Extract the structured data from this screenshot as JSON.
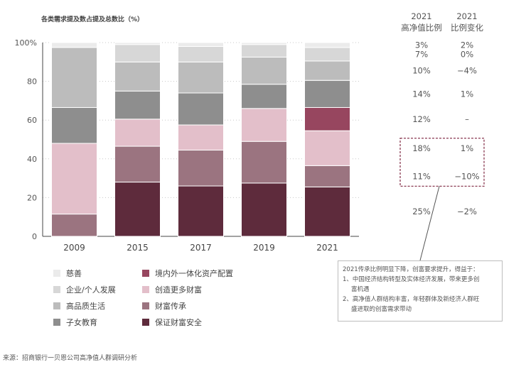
{
  "chart_data": {
    "type": "bar",
    "stacked": true,
    "title": "各类需求提及数占提及总数比（%）",
    "xlabel": "",
    "ylabel": "",
    "ylim": [
      0,
      100
    ],
    "yticks": [
      "0",
      "20",
      "40",
      "60",
      "80",
      "100%"
    ],
    "categories": [
      "2009",
      "2015",
      "2017",
      "2019",
      "2021"
    ],
    "series": [
      {
        "name": "保证财富安全",
        "color": "#5e2b3c",
        "values": [
          0,
          28,
          26,
          27.5,
          25.5
        ]
      },
      {
        "name": "财富传承",
        "color": "#9b7480",
        "values": [
          11.5,
          18.5,
          18.5,
          21.5,
          11
        ]
      },
      {
        "name": "创造更多财富",
        "color": "#e3bfca",
        "values": [
          36.5,
          14,
          13,
          17,
          18
        ]
      },
      {
        "name": "境内外一体化资产配置",
        "color": "#97465f",
        "values": [
          0,
          0,
          0,
          0,
          12
        ]
      },
      {
        "name": "子女教育",
        "color": "#8e8e8e",
        "values": [
          18.5,
          14.5,
          16.5,
          12.5,
          14
        ]
      },
      {
        "name": "高品质生活",
        "color": "#bcbcbc",
        "values": [
          31,
          15,
          16,
          14,
          10
        ]
      },
      {
        "name": "企业/个人发展",
        "color": "#d7d7d7",
        "values": [
          0,
          9,
          8,
          6.5,
          7
        ]
      },
      {
        "name": "慈善",
        "color": "#ebebeb",
        "values": [
          2.5,
          1,
          2,
          1,
          2.5
        ]
      }
    ]
  },
  "side_table": {
    "header_col1": [
      "2021",
      "高净值比例"
    ],
    "header_col2": [
      "2021",
      "比例变化"
    ],
    "rows": [
      {
        "share": "3%",
        "change": "2%"
      },
      {
        "share": "7%",
        "change": "0%"
      },
      {
        "share": "10%",
        "change": "−4%"
      },
      {
        "share": "14%",
        "change": "1%"
      },
      {
        "share": "12%",
        "change": "–"
      },
      {
        "share": "18%",
        "change": "1%"
      },
      {
        "share": "11%",
        "change": "−10%"
      },
      {
        "share": "25%",
        "change": "−2%"
      }
    ]
  },
  "legend": {
    "left": [
      {
        "label": "慈善",
        "color": "#ebebeb"
      },
      {
        "label": "企业/个人发展",
        "color": "#d7d7d7"
      },
      {
        "label": "高品质生活",
        "color": "#bcbcbc"
      },
      {
        "label": "子女教育",
        "color": "#8e8e8e"
      }
    ],
    "right": [
      {
        "label": "境内外一体化资产配置",
        "color": "#97465f"
      },
      {
        "label": "创造更多财富",
        "color": "#e3bfca"
      },
      {
        "label": "财富传承",
        "color": "#9b7480"
      },
      {
        "label": "保证财富安全",
        "color": "#5e2b3c"
      }
    ]
  },
  "note": {
    "line1": "2021传承比例明显下降，创富要求提升，得益于：",
    "line2": "1、中国经济结构转型及实体经济发展，带来更多创",
    "line3": "富机遇",
    "line4": "2、高净值人群结构丰富，年轻群体及新经济人群旺",
    "line5": "盛进取的创富需求带动"
  },
  "source": "来源：招商银行一贝恩公司高净值人群调研分析"
}
